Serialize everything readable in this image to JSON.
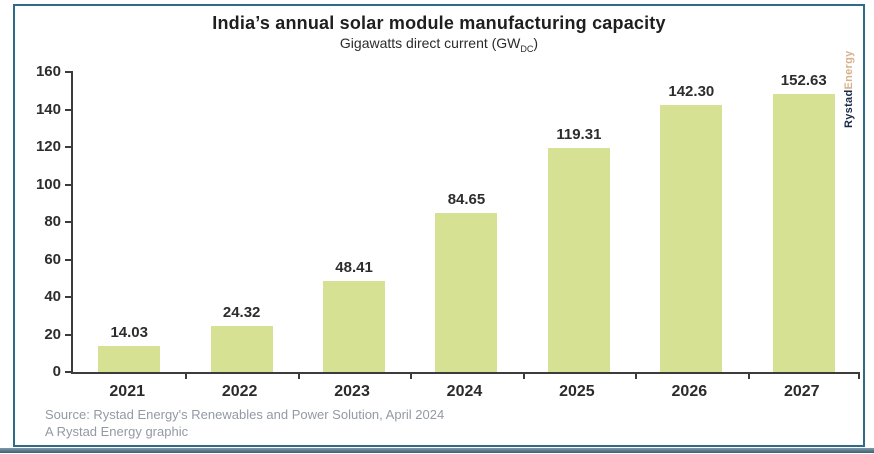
{
  "header": {
    "title": "India’s annual solar module manufacturing capacity",
    "subtitle_prefix": "Gigawatts direct current (GW",
    "subtitle_sub": "DC",
    "subtitle_suffix": ")"
  },
  "logo": {
    "part1": "Rystad",
    "part2": "Energy"
  },
  "chart_data": {
    "type": "bar",
    "title": "India’s annual solar module manufacturing capacity",
    "subtitle": "Gigawatts direct current (GW_DC)",
    "categories": [
      "2021",
      "2022",
      "2023",
      "2024",
      "2025",
      "2026",
      "2027"
    ],
    "values": [
      14.03,
      24.32,
      48.41,
      84.65,
      119.31,
      142.3,
      152.63
    ],
    "value_labels": [
      "14.03",
      "24.32",
      "48.41",
      "84.65",
      "119.31",
      "142.30",
      "152.63"
    ],
    "xlabel": "",
    "ylabel": "",
    "ylim": [
      0,
      160
    ],
    "yticks": [
      0,
      20,
      40,
      60,
      80,
      100,
      120,
      140,
      160
    ],
    "grid": false,
    "legend": false,
    "bar_color": "#d7e194",
    "axis_color": "#3c3c3c"
  },
  "footer": {
    "source_line1": "Source: Rystad Energy's Renewables and Power Solution, April 2024",
    "source_line2": "A Rystad Energy graphic"
  },
  "colors": {
    "frame_border": "#2e6b87",
    "logo_rystad": "#1b2b4b",
    "logo_energy": "#d6b28c",
    "source_text": "#939aa3"
  }
}
